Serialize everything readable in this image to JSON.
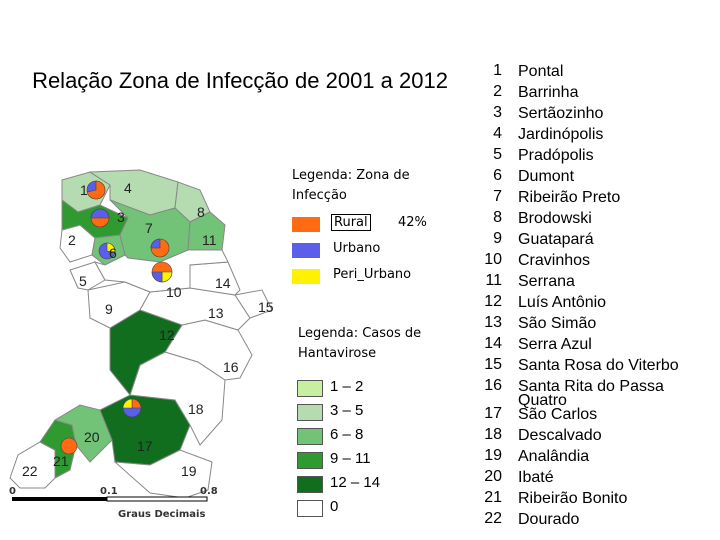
{
  "title": "Relação Zona de Infecção de 2001 a 2012",
  "zone_legend": {
    "title": "Legenda: Zona de Infecção",
    "items": [
      {
        "label": "Rural",
        "color": "#ff6a13",
        "percent": "42%"
      },
      {
        "label": "Urbano",
        "color": "#5a5ee8"
      },
      {
        "label": "Peri_Urbano",
        "color": "#fff200"
      }
    ]
  },
  "cases_legend": {
    "title": "Legenda: Casos de Hantavirose",
    "items": [
      {
        "label": "1 – 2",
        "color": "#c6f0a0"
      },
      {
        "label": "3 – 5",
        "color": "#b5dbb0"
      },
      {
        "label": "6 – 8",
        "color": "#72c278"
      },
      {
        "label": "9 – 11",
        "color": "#2f9a2f"
      },
      {
        "label": "12 – 14",
        "color": "#116e1f"
      },
      {
        "label": "0",
        "color": "#ffffff"
      }
    ]
  },
  "scale_bar": {
    "labels": [
      "0",
      "0.1",
      "0.8"
    ],
    "caption": "Graus Decimais"
  },
  "map_labels": {
    "m1": "1",
    "m2": "2",
    "m3": "3",
    "m4": "4",
    "m5": "5",
    "m6": "6",
    "m7": "7",
    "m8": "8",
    "m9": "9",
    "m10": "10",
    "m11": "11",
    "m12": "12",
    "m13": "13",
    "m14": "14",
    "m15": "15",
    "m16": "16",
    "m17": "17",
    "m18": "18",
    "m19": "19",
    "m20": "20",
    "m21": "21",
    "m22": "22"
  },
  "municipalities": [
    {
      "num": "1",
      "name": "Pontal"
    },
    {
      "num": "2",
      "name": "Barrinha"
    },
    {
      "num": "3",
      "name": "Sertãozinho"
    },
    {
      "num": "4",
      "name": "Jardinópolis"
    },
    {
      "num": "5",
      "name": "Pradópolis"
    },
    {
      "num": "6",
      "name": "Dumont"
    },
    {
      "num": "7",
      "name": "Ribeirão Preto"
    },
    {
      "num": "8",
      "name": "Brodowski"
    },
    {
      "num": "9",
      "name": "Guatapará"
    },
    {
      "num": "10",
      "name": "Cravinhos"
    },
    {
      "num": "11",
      "name": "Serrana"
    },
    {
      "num": "12",
      "name": "Luís Antônio"
    },
    {
      "num": "13",
      "name": "São Simão"
    },
    {
      "num": "14",
      "name": "Serra Azul"
    },
    {
      "num": "15",
      "name": "Santa Rosa do Viterbo"
    },
    {
      "num": "16",
      "name": "Santa Rita do Passa Quatro"
    },
    {
      "num": "17",
      "name": "São Carlos"
    },
    {
      "num": "18",
      "name": "Descalvado"
    },
    {
      "num": "19",
      "name": "Analândia"
    },
    {
      "num": "20",
      "name": "Ibaté"
    },
    {
      "num": "21",
      "name": "Ribeirão Bonito"
    },
    {
      "num": "22",
      "name": "Dourado"
    }
  ]
}
